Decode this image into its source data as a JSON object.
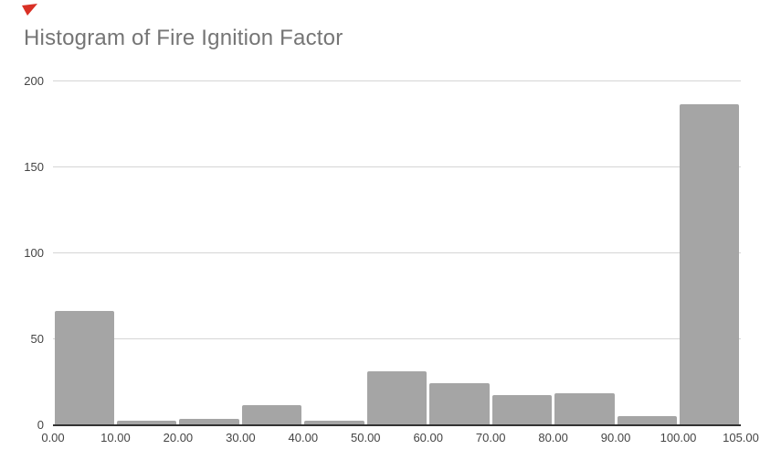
{
  "chart_data": {
    "type": "bar",
    "subtype": "histogram",
    "title": "Histogram of Fire Ignition Factor",
    "categories": [
      "0.00-10.00",
      "10.00-20.00",
      "20.00-30.00",
      "30.00-40.00",
      "40.00-50.00",
      "50.00-60.00",
      "60.00-70.00",
      "70.00-80.00",
      "80.00-90.00",
      "90.00-100.00",
      "100.00-105.00"
    ],
    "values": [
      66,
      2,
      3,
      11,
      2,
      31,
      24,
      17,
      18,
      5,
      186
    ],
    "x_tick_labels": [
      "0.00",
      "10.00",
      "20.00",
      "30.00",
      "40.00",
      "50.00",
      "60.00",
      "70.00",
      "80.00",
      "90.00",
      "100.00",
      "105.00"
    ],
    "y_tick_labels": [
      "0",
      "50",
      "100",
      "150",
      "200"
    ],
    "ylim": [
      0,
      200
    ],
    "xlabel": "",
    "ylabel": "",
    "grid": "horizontal",
    "legend_position": "none",
    "colors": {
      "bar": "#a5a5a5",
      "title": "#757575",
      "tick_label": "#444444",
      "gridline": "#d5d5d5",
      "axis_line": "#333333",
      "background": "#ffffff",
      "corner_marker": "#d93025"
    }
  }
}
